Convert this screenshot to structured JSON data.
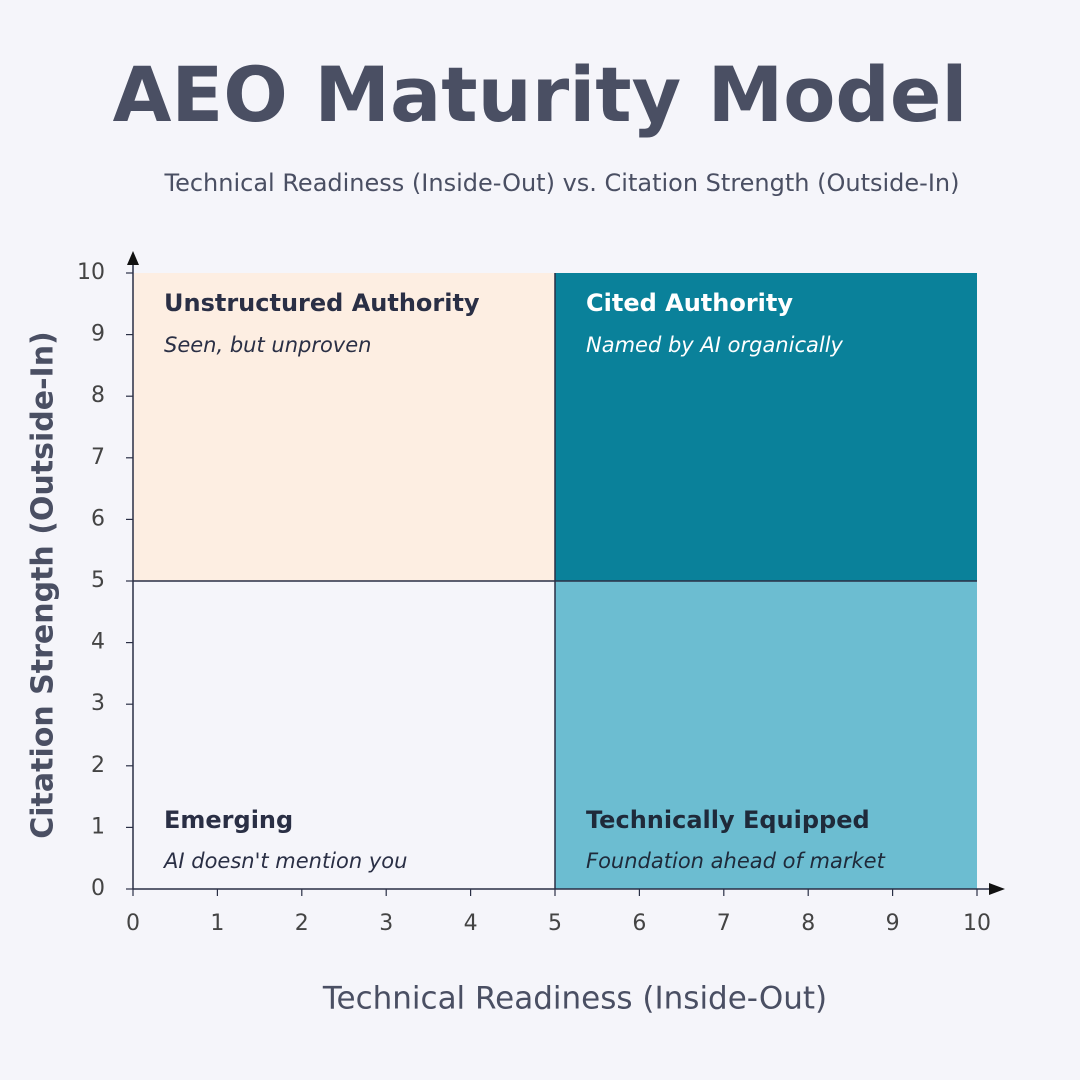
{
  "chart_data": {
    "type": "quadrant",
    "title": "AEO Maturity Model",
    "subtitle": "Technical Readiness (Inside-Out) vs. Citation Strength (Outside-In)",
    "xlabel": "Technical Readiness (Inside-Out)",
    "ylabel": "Citation Strength (Outside-In)",
    "xlim": [
      0,
      10
    ],
    "ylim": [
      0,
      10
    ],
    "xticks": [
      0,
      1,
      2,
      3,
      4,
      5,
      6,
      7,
      8,
      9,
      10
    ],
    "yticks": [
      0,
      1,
      2,
      3,
      4,
      5,
      6,
      7,
      8,
      9,
      10
    ],
    "quadrants": [
      {
        "name": "Unstructured Authority",
        "description": "Seen, but unproven",
        "xrange": [
          0,
          5
        ],
        "yrange": [
          5,
          10
        ],
        "color": "#fdeee2",
        "text_color": "#2a2f45"
      },
      {
        "name": "Cited Authority",
        "description": "Named by AI organically",
        "xrange": [
          5,
          10
        ],
        "yrange": [
          5,
          10
        ],
        "color": "#0a819a",
        "text_color": "#ffffff"
      },
      {
        "name": "Emerging",
        "description": "AI doesn't mention you",
        "xrange": [
          0,
          5
        ],
        "yrange": [
          0,
          5
        ],
        "text_color": "#2a2f45"
      },
      {
        "name": "Technically Equipped",
        "description": "Foundation ahead of market",
        "xrange": [
          5,
          10
        ],
        "yrange": [
          0,
          5
        ],
        "color": "#6cbdd1",
        "text_color": "#1f2a3a"
      }
    ]
  }
}
